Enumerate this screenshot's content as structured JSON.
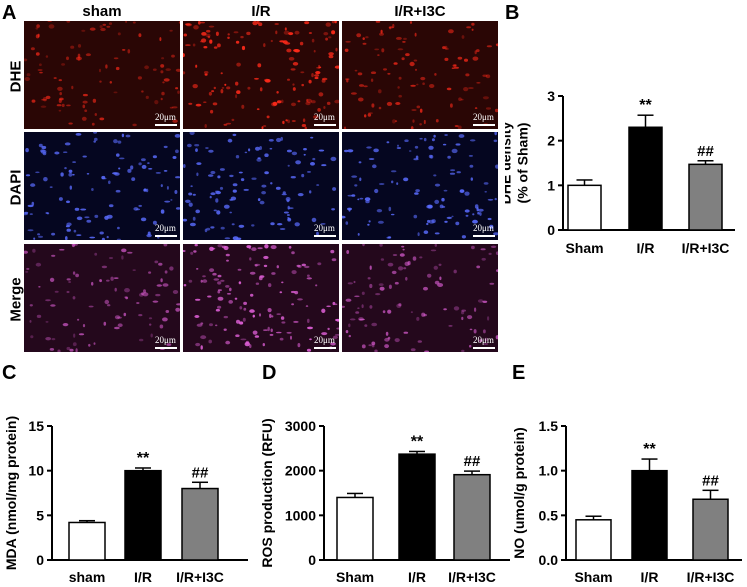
{
  "panel_a": {
    "letter": "A",
    "columns": [
      "sham",
      "I/R",
      "I/R+I3C"
    ],
    "rows": [
      {
        "label": "DHE",
        "stain": "dhe"
      },
      {
        "label": "DAPI",
        "stain": "dapi"
      },
      {
        "label": "Merge",
        "stain": "merge"
      }
    ],
    "density": [
      0.5,
      1.0,
      0.6
    ],
    "scale_label": "20μm",
    "colors": {
      "dhe": "#ff2a1a",
      "dapi": "#5a6cff",
      "merge": "#e060d8"
    }
  },
  "chart_data": [
    {
      "letter": "B",
      "type": "bar",
      "categories": [
        "Sham",
        "I/R",
        "I/R+I3C"
      ],
      "values": [
        1.0,
        2.3,
        1.47
      ],
      "errors": [
        0.12,
        0.27,
        0.08
      ],
      "annotations": [
        "",
        "**",
        "##"
      ],
      "ylabel": "DHE density (% of Sham)",
      "ylabel_lines": [
        "DHE density",
        "(% of Sham)"
      ],
      "ylim": [
        0,
        3
      ],
      "yticks": [
        0,
        1,
        2,
        3
      ],
      "ytick_labels": [
        "0",
        "1",
        "2",
        "3"
      ],
      "bar_colors": [
        "#ffffff",
        "#000000",
        "#808080"
      ]
    },
    {
      "letter": "C",
      "type": "bar",
      "categories": [
        "sham",
        "I/R",
        "I/R+I3C"
      ],
      "values": [
        4.2,
        10.0,
        8.0
      ],
      "errors": [
        0.2,
        0.3,
        0.7
      ],
      "annotations": [
        "",
        "**",
        "##"
      ],
      "ylabel": "MDA (nmol/mg protein)",
      "ylabel_lines": [
        "MDA (nmol/mg protein)"
      ],
      "ylim": [
        0,
        15
      ],
      "yticks": [
        0,
        5,
        10,
        15
      ],
      "ytick_labels": [
        "0",
        "5",
        "10",
        "15"
      ],
      "bar_colors": [
        "#ffffff",
        "#000000",
        "#808080"
      ]
    },
    {
      "letter": "D",
      "type": "bar",
      "categories": [
        "Sham",
        "I/R",
        "I/R+I3C"
      ],
      "values": [
        1400,
        2370,
        1910
      ],
      "errors": [
        90,
        60,
        80
      ],
      "annotations": [
        "",
        "**",
        "##"
      ],
      "ylabel": "ROS production (RFU)",
      "ylabel_lines": [
        "ROS production (RFU)"
      ],
      "ylim": [
        0,
        3000
      ],
      "yticks": [
        0,
        1000,
        2000,
        3000
      ],
      "ytick_labels": [
        "0",
        "1000",
        "2000",
        "3000"
      ],
      "bar_colors": [
        "#ffffff",
        "#000000",
        "#808080"
      ]
    },
    {
      "letter": "E",
      "type": "bar",
      "categories": [
        "Sham",
        "I/R",
        "I/R+I3C"
      ],
      "values": [
        0.45,
        1.0,
        0.68
      ],
      "errors": [
        0.04,
        0.13,
        0.1
      ],
      "annotations": [
        "",
        "**",
        "##"
      ],
      "ylabel": "NO (umol/g protein)",
      "ylabel_lines": [
        "NO (umol/g protein)"
      ],
      "ylim": [
        0,
        1.5
      ],
      "yticks": [
        0,
        0.5,
        1.0,
        1.5
      ],
      "ytick_labels": [
        "0.0",
        "0.5",
        "1.0",
        "1.5"
      ],
      "bar_colors": [
        "#ffffff",
        "#000000",
        "#808080"
      ]
    }
  ]
}
